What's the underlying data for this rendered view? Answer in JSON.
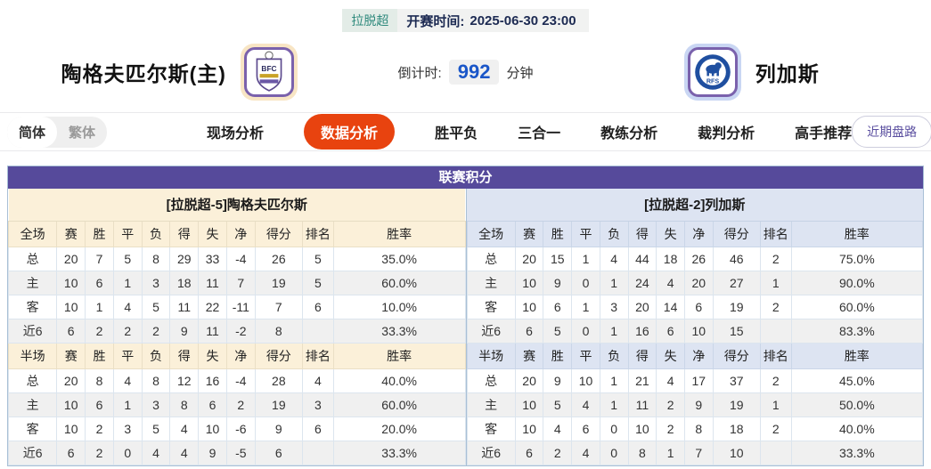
{
  "header": {
    "league_badge": "拉脱超",
    "kickoff_label": "开赛时间:",
    "kickoff_time": "2025-06-30 23:00",
    "home_team": "陶格夫匹尔斯(主)",
    "away_team": "列加斯",
    "home_logo_text": "BFC",
    "away_logo_text": "RFS",
    "countdown_label": "倒计时:",
    "countdown_value": "992",
    "countdown_unit": "分钟"
  },
  "nav": {
    "lang_simplified": "简体",
    "lang_traditional": "繁体",
    "tabs": [
      {
        "label": "现场分析",
        "active": false
      },
      {
        "label": "数据分析",
        "active": true
      },
      {
        "label": "胜平负",
        "active": false
      },
      {
        "label": "三合一",
        "active": false
      },
      {
        "label": "教练分析",
        "active": false
      },
      {
        "label": "裁判分析",
        "active": false
      },
      {
        "label": "高手推荐",
        "active": false
      }
    ],
    "recent_button": "近期盘路"
  },
  "table": {
    "title": "联赛积分",
    "home": {
      "header": "[拉脱超-5]陶格夫匹尔斯",
      "full_columns": [
        "全场",
        "赛",
        "胜",
        "平",
        "负",
        "得",
        "失",
        "净",
        "得分",
        "排名",
        "胜率"
      ],
      "full_rows": [
        {
          "label": "总",
          "values": [
            "20",
            "7",
            "5",
            "8",
            "29",
            "33",
            "-4",
            "26",
            "5",
            "35.0%"
          ]
        },
        {
          "label": "主",
          "values": [
            "10",
            "6",
            "1",
            "3",
            "18",
            "11",
            "7",
            "19",
            "5",
            "60.0%"
          ]
        },
        {
          "label": "客",
          "values": [
            "10",
            "1",
            "4",
            "5",
            "11",
            "22",
            "-11",
            "7",
            "6",
            "10.0%"
          ]
        },
        {
          "label": "近6",
          "values": [
            "6",
            "2",
            "2",
            "2",
            "9",
            "11",
            "-2",
            "8",
            "",
            "33.3%"
          ]
        }
      ],
      "half_columns": [
        "半场",
        "赛",
        "胜",
        "平",
        "负",
        "得",
        "失",
        "净",
        "得分",
        "排名",
        "胜率"
      ],
      "half_rows": [
        {
          "label": "总",
          "values": [
            "20",
            "8",
            "4",
            "8",
            "12",
            "16",
            "-4",
            "28",
            "4",
            "40.0%"
          ]
        },
        {
          "label": "主",
          "values": [
            "10",
            "6",
            "1",
            "3",
            "8",
            "6",
            "2",
            "19",
            "3",
            "60.0%"
          ]
        },
        {
          "label": "客",
          "values": [
            "10",
            "2",
            "3",
            "5",
            "4",
            "10",
            "-6",
            "9",
            "6",
            "20.0%"
          ]
        },
        {
          "label": "近6",
          "values": [
            "6",
            "2",
            "0",
            "4",
            "4",
            "9",
            "-5",
            "6",
            "",
            "33.3%"
          ]
        }
      ]
    },
    "away": {
      "header": "[拉脱超-2]列加斯",
      "full_columns": [
        "全场",
        "赛",
        "胜",
        "平",
        "负",
        "得",
        "失",
        "净",
        "得分",
        "排名",
        "胜率"
      ],
      "full_rows": [
        {
          "label": "总",
          "values": [
            "20",
            "15",
            "1",
            "4",
            "44",
            "18",
            "26",
            "46",
            "2",
            "75.0%"
          ]
        },
        {
          "label": "主",
          "values": [
            "10",
            "9",
            "0",
            "1",
            "24",
            "4",
            "20",
            "27",
            "1",
            "90.0%"
          ]
        },
        {
          "label": "客",
          "values": [
            "10",
            "6",
            "1",
            "3",
            "20",
            "14",
            "6",
            "19",
            "2",
            "60.0%"
          ]
        },
        {
          "label": "近6",
          "values": [
            "6",
            "5",
            "0",
            "1",
            "16",
            "6",
            "10",
            "15",
            "",
            "83.3%"
          ]
        }
      ],
      "half_columns": [
        "半场",
        "赛",
        "胜",
        "平",
        "负",
        "得",
        "失",
        "净",
        "得分",
        "排名",
        "胜率"
      ],
      "half_rows": [
        {
          "label": "总",
          "values": [
            "20",
            "9",
            "10",
            "1",
            "21",
            "4",
            "17",
            "37",
            "2",
            "45.0%"
          ]
        },
        {
          "label": "主",
          "values": [
            "10",
            "5",
            "4",
            "1",
            "11",
            "2",
            "9",
            "19",
            "1",
            "50.0%"
          ]
        },
        {
          "label": "客",
          "values": [
            "10",
            "4",
            "6",
            "0",
            "10",
            "2",
            "8",
            "18",
            "2",
            "40.0%"
          ]
        },
        {
          "label": "近6",
          "values": [
            "6",
            "2",
            "4",
            "0",
            "8",
            "1",
            "7",
            "10",
            "",
            "33.3%"
          ]
        }
      ]
    }
  },
  "colors": {
    "accent_tab": "#E8430F",
    "table_title_purple": "#564A9B",
    "home_header_cream": "#FBF0D9",
    "away_header_lavender": "#DDE4F2",
    "countdown_blue": "#1A56C8",
    "league_badge_teal": "#2F8A7D",
    "home_row_label_red": "#D42A1E",
    "away_row_label_blue": "#1F2FD0"
  }
}
